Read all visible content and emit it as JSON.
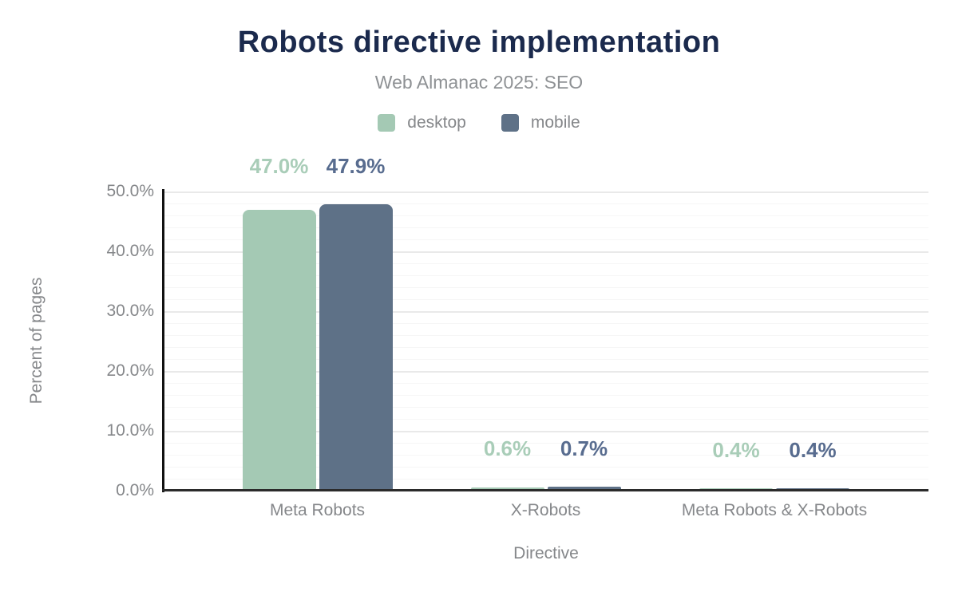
{
  "chart_data": {
    "type": "bar",
    "title": "Robots directive implementation",
    "subtitle": "Web Almanac 2025: SEO",
    "xlabel": "Directive",
    "ylabel": "Percent of pages",
    "categories": [
      "Meta Robots",
      "X-Robots",
      "Meta Robots & X-Robots"
    ],
    "series": [
      {
        "name": "desktop",
        "values": [
          47.0,
          0.6,
          0.4
        ],
        "labels": [
          "47.0%",
          "0.6%",
          "0.4%"
        ],
        "color": "#a4c9b4",
        "label_color": "#a9cdb8"
      },
      {
        "name": "mobile",
        "values": [
          47.9,
          0.7,
          0.4
        ],
        "labels": [
          "47.9%",
          "0.7%",
          "0.4%"
        ],
        "color": "#5e7187",
        "label_color": "#586c8f"
      }
    ],
    "ylim": [
      0,
      50
    ],
    "y_major_step": 10,
    "y_minor_step": 2,
    "y_tick_labels": [
      "0.0%",
      "10.0%",
      "20.0%",
      "30.0%",
      "40.0%",
      "50.0%"
    ],
    "grid": true,
    "legend_position": "top"
  }
}
